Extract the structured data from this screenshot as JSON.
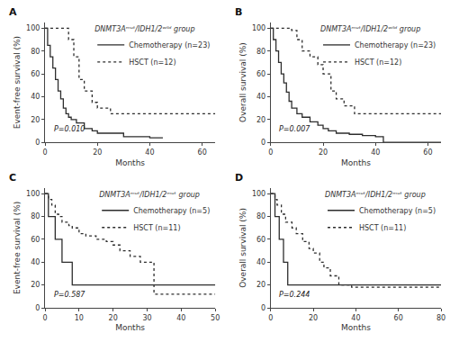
{
  "chart_data": [
    {
      "type": "step",
      "title": "A",
      "xlabel": "Months",
      "ylabel": "Event-free survival (%)",
      "xlim": [
        0,
        65
      ],
      "ylim": [
        0,
        105
      ],
      "xticks": [
        0,
        20,
        40,
        60
      ],
      "yticks": [
        0,
        20,
        40,
        60,
        80,
        100
      ],
      "annotations": [
        "P=0.010"
      ],
      "legend_title": "DNMT3Aᵐᵘᵗ/IDH1/2ʷⁱˡᵈ group",
      "legend": "upper right",
      "grid": false,
      "series": [
        {
          "name": "Chemotherapy (n=23)",
          "color": "#2d2d2d",
          "line_style": "solid",
          "x": [
            0,
            1,
            2,
            3,
            4,
            5,
            6,
            7,
            8,
            9,
            10,
            12,
            15,
            18,
            20,
            30,
            35,
            40,
            45
          ],
          "values": [
            100,
            85,
            75,
            65,
            55,
            45,
            38,
            30,
            25,
            22,
            20,
            17,
            12,
            10,
            8,
            5,
            5,
            4,
            4
          ]
        },
        {
          "name": "HSCT (n=12)",
          "color": "#2d2d2d",
          "line_style": "dotted",
          "x": [
            0,
            5,
            9,
            11,
            13,
            15,
            18,
            20,
            25,
            40,
            65
          ],
          "values": [
            100,
            100,
            90,
            75,
            55,
            45,
            35,
            30,
            25,
            25,
            25
          ]
        }
      ]
    },
    {
      "type": "step",
      "title": "B",
      "xlabel": "Months",
      "ylabel": "Overall survival (%)",
      "xlim": [
        0,
        65
      ],
      "ylim": [
        0,
        105
      ],
      "xticks": [
        0,
        20,
        40,
        60
      ],
      "yticks": [
        0,
        20,
        40,
        60,
        80,
        100
      ],
      "annotations": [
        "P=0.007"
      ],
      "legend_title": "DNMT3Aᵐᵘᵗ/IDH1/2ʷⁱˡᵈ group",
      "legend": "upper right",
      "grid": false,
      "series": [
        {
          "name": "Chemotherapy (n=23)",
          "color": "#2d2d2d",
          "line_style": "solid",
          "x": [
            0,
            1,
            2,
            3,
            4,
            5,
            6,
            7,
            8,
            10,
            12,
            15,
            18,
            20,
            22,
            25,
            30,
            35,
            40,
            43,
            65
          ],
          "values": [
            100,
            90,
            80,
            70,
            60,
            52,
            44,
            36,
            30,
            25,
            22,
            18,
            15,
            12,
            10,
            8,
            7,
            6,
            5,
            0,
            0
          ]
        },
        {
          "name": "HSCT (n=12)",
          "color": "#2d2d2d",
          "line_style": "dotted",
          "x": [
            0,
            3,
            8,
            10,
            12,
            15,
            18,
            20,
            23,
            25,
            28,
            32,
            40,
            65
          ],
          "values": [
            100,
            100,
            98,
            90,
            80,
            75,
            68,
            60,
            45,
            38,
            32,
            25,
            25,
            25
          ]
        }
      ]
    },
    {
      "type": "step",
      "title": "C",
      "xlabel": "Months",
      "ylabel": "Event-free survival (%)",
      "xlim": [
        0,
        50
      ],
      "ylim": [
        0,
        105
      ],
      "xticks": [
        0,
        10,
        20,
        30,
        40,
        50
      ],
      "yticks": [
        0,
        20,
        40,
        60,
        80,
        100
      ],
      "annotations": [
        "P=0.587"
      ],
      "legend_title": "DNMT3Aᵐᵘᵗ/IDH1/2ᵐᵘᵗ group",
      "legend": "upper right",
      "grid": false,
      "series": [
        {
          "name": "Chemotherapy (n=5)",
          "color": "#2d2d2d",
          "line_style": "solid",
          "x": [
            0,
            1,
            3,
            5,
            8,
            15,
            50
          ],
          "values": [
            100,
            80,
            60,
            40,
            20,
            20,
            20
          ]
        },
        {
          "name": "HSCT (n=11)",
          "color": "#2d2d2d",
          "line_style": "dotted",
          "x": [
            0,
            1,
            2,
            3,
            4,
            5,
            7,
            8,
            10,
            12,
            15,
            18,
            20,
            22,
            25,
            28,
            32,
            50
          ],
          "values": [
            100,
            95,
            90,
            82,
            80,
            75,
            72,
            70,
            65,
            63,
            60,
            58,
            55,
            50,
            45,
            40,
            12,
            12
          ]
        }
      ]
    },
    {
      "type": "step",
      "title": "D",
      "xlabel": "Months",
      "ylabel": "Overall survival (%)",
      "xlim": [
        0,
        80
      ],
      "ylim": [
        0,
        105
      ],
      "xticks": [
        0,
        20,
        40,
        60,
        80
      ],
      "yticks": [
        0,
        20,
        40,
        60,
        80,
        100
      ],
      "annotations": [
        "P=0.244"
      ],
      "legend_title": "DNMT3Aᵐᵘᵗ/IDH1/2ᵐᵘᵗ group",
      "legend": "upper right",
      "grid": false,
      "series": [
        {
          "name": "Chemotherapy (n=5)",
          "color": "#2d2d2d",
          "line_style": "solid",
          "x": [
            0,
            2,
            4,
            6,
            8,
            12,
            20,
            80
          ],
          "values": [
            100,
            80,
            60,
            40,
            20,
            20,
            20,
            20
          ]
        },
        {
          "name": "HSCT (n=11)",
          "color": "#2d2d2d",
          "line_style": "dotted",
          "x": [
            0,
            1,
            2,
            3,
            5,
            7,
            10,
            12,
            15,
            18,
            20,
            23,
            25,
            28,
            32,
            38,
            80
          ],
          "values": [
            100,
            100,
            95,
            90,
            82,
            75,
            70,
            65,
            58,
            52,
            48,
            40,
            35,
            28,
            20,
            18,
            18
          ]
        }
      ]
    }
  ]
}
